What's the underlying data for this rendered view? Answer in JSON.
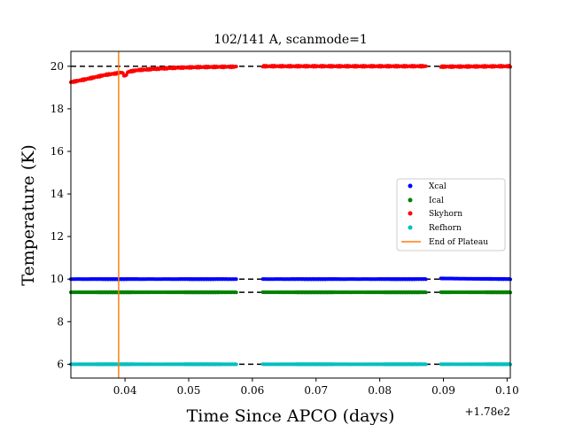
{
  "chart_data": {
    "type": "scatter",
    "title": "102/141 A, scanmode=1",
    "xlabel": "Time Since APCO (days)",
    "ylabel": "Temperature (K)",
    "x_offset_label": "+1.78e2",
    "xlim": [
      0.0315,
      0.1005
    ],
    "ylim": [
      5.35,
      20.7
    ],
    "xticks": [
      0.04,
      0.05,
      0.06,
      0.07,
      0.08,
      0.09,
      0.1
    ],
    "xtick_labels": [
      "0.04",
      "0.05",
      "0.06",
      "0.07",
      "0.08",
      "0.09",
      "0.10"
    ],
    "yticks": [
      6,
      8,
      10,
      12,
      14,
      16,
      18,
      20
    ],
    "ytick_labels": [
      "6",
      "8",
      "10",
      "12",
      "14",
      "16",
      "18",
      "20"
    ],
    "grid": false,
    "legend_position": "center-right",
    "gaps": [
      [
        0.0575,
        0.0615
      ],
      [
        0.0873,
        0.0895
      ]
    ],
    "series": [
      {
        "name": "Xcal",
        "color": "#0000ff",
        "x": [
          0.0315,
          0.0575,
          0.0615,
          0.0873,
          0.0895,
          0.1005
        ],
        "y": [
          10.0,
          10.0,
          10.0,
          10.0,
          10.03,
          10.0
        ]
      },
      {
        "name": "Ical",
        "color": "#008000",
        "x": [
          0.0315,
          0.0575,
          0.0615,
          0.0873,
          0.0895,
          0.1005
        ],
        "y": [
          9.38,
          9.38,
          9.38,
          9.38,
          9.38,
          9.38
        ]
      },
      {
        "name": "Skyhorn",
        "color": "#ff0000",
        "x": [
          0.0315,
          0.034,
          0.037,
          0.039,
          0.0395,
          0.04,
          0.0405,
          0.042,
          0.045,
          0.048,
          0.052,
          0.0575,
          0.0615,
          0.07,
          0.0873,
          0.0895,
          0.1005
        ],
        "y": [
          19.25,
          19.4,
          19.6,
          19.68,
          19.72,
          19.52,
          19.74,
          19.82,
          19.88,
          19.93,
          19.96,
          19.98,
          20.0,
          20.0,
          20.0,
          19.98,
          20.0
        ]
      },
      {
        "name": "Refhorn",
        "color": "#00bfbf",
        "x": [
          0.0315,
          0.0575,
          0.0615,
          0.0873,
          0.0895,
          0.1005
        ],
        "y": [
          6.0,
          6.0,
          6.0,
          6.0,
          6.0,
          6.0
        ]
      }
    ],
    "reference_lines": [
      {
        "orientation": "horizontal",
        "y": 20,
        "color": "#000000",
        "style": "dashed"
      },
      {
        "orientation": "horizontal",
        "y": 10,
        "color": "#000000",
        "style": "dashed"
      },
      {
        "orientation": "horizontal",
        "y": 9.38,
        "color": "#000000",
        "style": "dashed"
      },
      {
        "orientation": "horizontal",
        "y": 6,
        "color": "#000000",
        "style": "dashed"
      },
      {
        "orientation": "vertical",
        "x": 0.039,
        "name": "End of Plateau",
        "color": "#ff7f0e",
        "style": "solid"
      }
    ]
  }
}
